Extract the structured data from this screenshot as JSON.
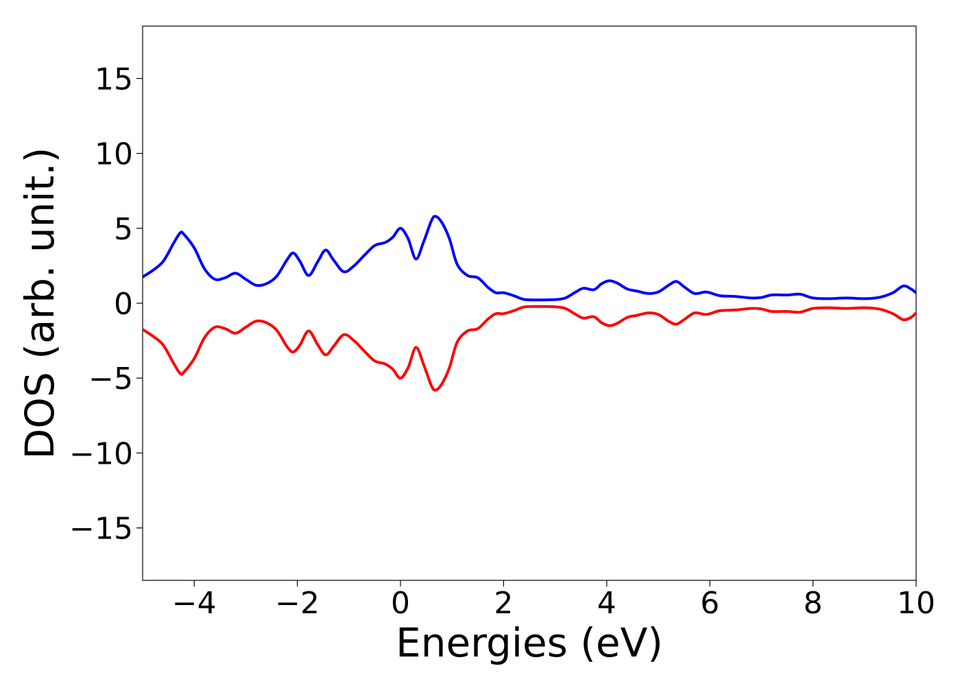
{
  "chart_data": {
    "type": "line",
    "xlabel": "Energies (eV)",
    "ylabel": "DOS (arb. unit.)",
    "xlim": [
      -5,
      10
    ],
    "ylim": [
      -18.5,
      18.5
    ],
    "grid": false,
    "x_ticks": [
      {
        "value": -4,
        "label": "−4"
      },
      {
        "value": -2,
        "label": "−2"
      },
      {
        "value": 0,
        "label": "0"
      },
      {
        "value": 2,
        "label": "2"
      },
      {
        "value": 4,
        "label": "4"
      },
      {
        "value": 6,
        "label": "6"
      },
      {
        "value": 8,
        "label": "8"
      },
      {
        "value": 10,
        "label": "10"
      }
    ],
    "y_ticks": [
      {
        "value": 15,
        "label": "15"
      },
      {
        "value": 10,
        "label": "10"
      },
      {
        "value": 5,
        "label": "5"
      },
      {
        "value": 0,
        "label": "0"
      },
      {
        "value": -5,
        "label": "−5"
      },
      {
        "value": -10,
        "label": "−10"
      },
      {
        "value": -15,
        "label": "−15"
      }
    ],
    "series": [
      {
        "color": "#0000ff",
        "x": [
          -5.0,
          -4.8,
          -4.6,
          -4.4,
          -4.27,
          -4.2,
          -4.0,
          -3.8,
          -3.6,
          -3.4,
          -3.2,
          -3.0,
          -2.8,
          -2.6,
          -2.4,
          -2.2,
          -2.08,
          -1.95,
          -1.78,
          -1.6,
          -1.45,
          -1.3,
          -1.1,
          -0.9,
          -0.7,
          -0.5,
          -0.3,
          -0.15,
          0.0,
          0.15,
          0.3,
          0.45,
          0.6,
          0.68,
          0.8,
          0.95,
          1.1,
          1.3,
          1.5,
          1.7,
          1.85,
          2.0,
          2.2,
          2.4,
          2.7,
          3.0,
          3.2,
          3.4,
          3.55,
          3.75,
          3.9,
          4.05,
          4.2,
          4.4,
          4.6,
          4.8,
          5.0,
          5.2,
          5.35,
          5.5,
          5.7,
          5.9,
          6.0,
          6.2,
          6.5,
          6.8,
          7.0,
          7.2,
          7.5,
          7.75,
          8.0,
          8.3,
          8.65,
          9.0,
          9.3,
          9.55,
          9.75,
          9.9,
          10.0
        ],
        "y": [
          1.75,
          2.2,
          2.8,
          4.0,
          4.7,
          4.6,
          3.7,
          2.3,
          1.6,
          1.7,
          2.0,
          1.6,
          1.2,
          1.3,
          1.8,
          2.9,
          3.35,
          2.8,
          1.85,
          2.8,
          3.55,
          2.9,
          2.1,
          2.5,
          3.2,
          3.85,
          4.05,
          4.4,
          5.0,
          4.3,
          2.95,
          4.1,
          5.5,
          5.8,
          5.4,
          4.3,
          2.6,
          1.85,
          1.7,
          1.05,
          0.7,
          0.7,
          0.5,
          0.25,
          0.22,
          0.24,
          0.35,
          0.75,
          1.0,
          0.9,
          1.3,
          1.5,
          1.35,
          0.95,
          0.8,
          0.65,
          0.75,
          1.2,
          1.45,
          1.1,
          0.65,
          0.75,
          0.7,
          0.5,
          0.45,
          0.35,
          0.38,
          0.55,
          0.55,
          0.6,
          0.35,
          0.3,
          0.35,
          0.3,
          0.4,
          0.7,
          1.15,
          0.95,
          0.7
        ]
      },
      {
        "color": "#ff0000",
        "x": [
          -5.0,
          -4.8,
          -4.6,
          -4.4,
          -4.27,
          -4.2,
          -4.0,
          -3.8,
          -3.6,
          -3.4,
          -3.2,
          -3.0,
          -2.8,
          -2.6,
          -2.4,
          -2.2,
          -2.08,
          -1.95,
          -1.78,
          -1.6,
          -1.45,
          -1.3,
          -1.1,
          -0.9,
          -0.7,
          -0.5,
          -0.3,
          -0.15,
          0.0,
          0.15,
          0.3,
          0.45,
          0.6,
          0.68,
          0.8,
          0.95,
          1.1,
          1.3,
          1.5,
          1.7,
          1.85,
          2.0,
          2.2,
          2.4,
          2.7,
          3.0,
          3.2,
          3.4,
          3.55,
          3.75,
          3.9,
          4.05,
          4.2,
          4.4,
          4.6,
          4.8,
          5.0,
          5.2,
          5.35,
          5.5,
          5.7,
          5.9,
          6.0,
          6.2,
          6.5,
          6.8,
          7.0,
          7.2,
          7.5,
          7.75,
          8.0,
          8.3,
          8.65,
          9.0,
          9.3,
          9.55,
          9.75,
          9.9,
          10.0
        ],
        "y": [
          -1.75,
          -2.2,
          -2.8,
          -4.0,
          -4.7,
          -4.6,
          -3.7,
          -2.3,
          -1.6,
          -1.7,
          -2.0,
          -1.6,
          -1.2,
          -1.3,
          -1.8,
          -2.9,
          -3.25,
          -2.8,
          -1.85,
          -2.8,
          -3.45,
          -2.9,
          -2.1,
          -2.5,
          -3.2,
          -3.85,
          -4.05,
          -4.4,
          -5.0,
          -4.3,
          -2.95,
          -4.1,
          -5.5,
          -5.8,
          -5.4,
          -4.3,
          -2.6,
          -1.85,
          -1.7,
          -1.05,
          -0.7,
          -0.7,
          -0.5,
          -0.25,
          -0.22,
          -0.24,
          -0.35,
          -0.75,
          -1.0,
          -0.9,
          -1.3,
          -1.5,
          -1.35,
          -0.95,
          -0.8,
          -0.65,
          -0.75,
          -1.2,
          -1.4,
          -1.1,
          -0.65,
          -0.75,
          -0.7,
          -0.5,
          -0.45,
          -0.35,
          -0.38,
          -0.55,
          -0.55,
          -0.6,
          -0.35,
          -0.3,
          -0.35,
          -0.3,
          -0.4,
          -0.7,
          -1.1,
          -0.95,
          -0.65
        ]
      }
    ]
  }
}
